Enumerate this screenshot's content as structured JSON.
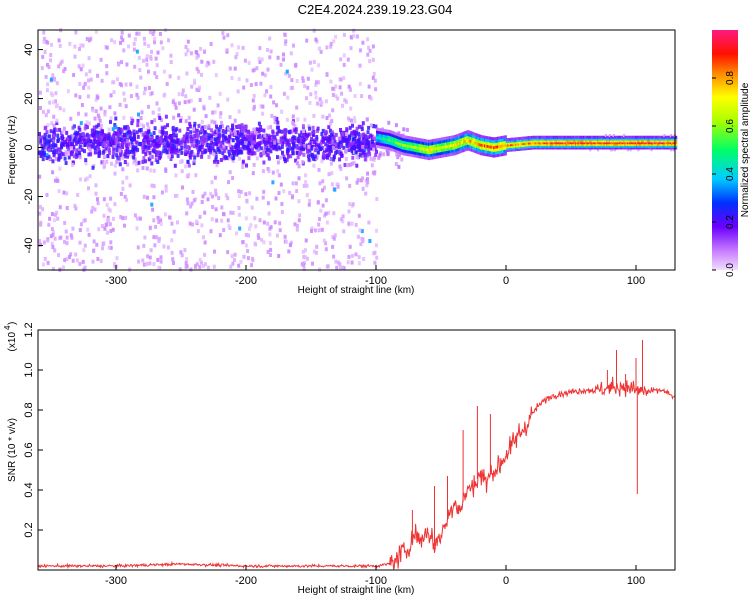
{
  "title": "C2E4.2024.239.19.23.G04",
  "chart_data": [
    {
      "type": "heatmap",
      "xlabel": "Height of straight line (km)",
      "ylabel": "Frequency (Hz)",
      "xlim": [
        -360,
        130
      ],
      "ylim": [
        -50,
        48
      ],
      "xticks": [
        -300,
        -200,
        -100,
        0,
        100
      ],
      "yticks": [
        -40,
        -20,
        0,
        20,
        40
      ],
      "colorbar": {
        "label": "Normalized spectral amplitude",
        "range": [
          0,
          1
        ],
        "ticks": [
          0.0,
          0.2,
          0.4,
          0.6,
          0.8
        ],
        "tick_labels": [
          "0.0",
          "0.2",
          "0.4",
          "0.6",
          "0.8"
        ]
      },
      "features": {
        "noise_region_x": [
          -360,
          -100
        ],
        "noise_band_center_hz": 2,
        "signal_track": [
          {
            "x": -100,
            "f": 4,
            "amp": 0.45
          },
          {
            "x": -90,
            "f": 3,
            "amp": 0.55
          },
          {
            "x": -80,
            "f": 1,
            "amp": 0.6
          },
          {
            "x": -70,
            "f": 0,
            "amp": 0.65
          },
          {
            "x": -60,
            "f": -1,
            "amp": 0.75
          },
          {
            "x": -50,
            "f": 0,
            "amp": 0.7
          },
          {
            "x": -40,
            "f": 1,
            "amp": 0.75
          },
          {
            "x": -30,
            "f": 3,
            "amp": 0.8
          },
          {
            "x": -20,
            "f": 1,
            "amp": 0.85
          },
          {
            "x": -10,
            "f": 0,
            "amp": 0.9
          },
          {
            "x": 0,
            "f": 1,
            "amp": 0.85
          },
          {
            "x": 20,
            "f": 2,
            "amp": 0.9
          },
          {
            "x": 40,
            "f": 2,
            "amp": 0.95
          },
          {
            "x": 60,
            "f": 2,
            "amp": 0.95
          },
          {
            "x": 80,
            "f": 2,
            "amp": 0.95
          },
          {
            "x": 100,
            "f": 2,
            "amp": 0.95
          },
          {
            "x": 120,
            "f": 2,
            "amp": 0.95
          }
        ]
      }
    },
    {
      "type": "line",
      "xlabel": "Height of straight line (km)",
      "ylabel": "SNR (10 * v/v)",
      "y_multiplier_label": "(x10",
      "y_multiplier_exp": "4",
      "xlim": [
        -360,
        130
      ],
      "ylim": [
        0,
        1.2
      ],
      "xticks": [
        -300,
        -200,
        -100,
        0,
        100
      ],
      "yticks": [
        0.2,
        0.4,
        0.6,
        0.8,
        1.0,
        1.2
      ],
      "ytick_labels": [
        "0.2",
        "0.4",
        "0.6",
        "0.8",
        "1.0",
        "1.2"
      ],
      "line_color": "#ee3333",
      "series": [
        {
          "x": [
            -360,
            -300,
            -250,
            -200,
            -150,
            -110,
            -100,
            -90,
            -85,
            -80,
            -75,
            -70,
            -65,
            -60,
            -55,
            -50,
            -45,
            -40,
            -35,
            -30,
            -25,
            -20,
            -15,
            -10,
            -5,
            0,
            5,
            10,
            15,
            20,
            25,
            30,
            35,
            40,
            50,
            60,
            70,
            80,
            90,
            100,
            110,
            120,
            130
          ],
          "y": [
            0.02,
            0.02,
            0.03,
            0.02,
            0.02,
            0.02,
            0.02,
            0.03,
            0.05,
            0.08,
            0.12,
            0.18,
            0.15,
            0.2,
            0.12,
            0.18,
            0.25,
            0.35,
            0.3,
            0.4,
            0.42,
            0.48,
            0.44,
            0.5,
            0.52,
            0.58,
            0.62,
            0.68,
            0.72,
            0.78,
            0.82,
            0.85,
            0.87,
            0.88,
            0.89,
            0.9,
            0.9,
            0.91,
            0.92,
            0.9,
            0.89,
            0.9,
            0.86
          ],
          "spikes": [
            {
              "x": -72,
              "y": 0.3
            },
            {
              "x": -55,
              "y": 0.42
            },
            {
              "x": -45,
              "y": 0.47
            },
            {
              "x": -33,
              "y": 0.7
            },
            {
              "x": -22,
              "y": 0.82
            },
            {
              "x": -12,
              "y": 0.78
            },
            {
              "x": 78,
              "y": 1.0
            },
            {
              "x": 85,
              "y": 1.1
            },
            {
              "x": 92,
              "y": 0.98
            },
            {
              "x": 100,
              "y": 1.06
            },
            {
              "x": 105,
              "y": 1.15
            },
            {
              "x": 101,
              "y": 0.38
            }
          ]
        }
      ]
    }
  ]
}
